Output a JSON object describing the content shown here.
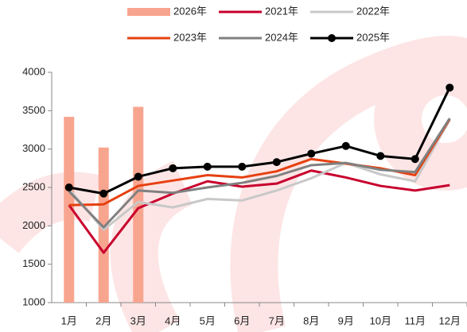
{
  "chart_data": {
    "type": "line",
    "categories": [
      "1月",
      "2月",
      "3月",
      "4月",
      "5月",
      "6月",
      "7月",
      "8月",
      "9月",
      "10月",
      "11月",
      "12月"
    ],
    "series": [
      {
        "name": "2026年",
        "type": "bar",
        "color": "#f8a58f",
        "values": [
          3420,
          3020,
          3550,
          null,
          null,
          null,
          null,
          null,
          null,
          null,
          null,
          null
        ]
      },
      {
        "name": "2021年",
        "type": "line",
        "color": "#c8002d",
        "values": [
          2270,
          1650,
          2230,
          2420,
          2580,
          2510,
          2550,
          2720,
          2630,
          2520,
          2460,
          2530
        ]
      },
      {
        "name": "2022年",
        "type": "line",
        "color": "#c8c8c8",
        "values": [
          2480,
          1950,
          2310,
          2240,
          2350,
          2330,
          2460,
          2620,
          2820,
          2670,
          2580,
          3380
        ]
      },
      {
        "name": "2023年",
        "type": "line",
        "color": "#e64010",
        "values": [
          2270,
          2280,
          2520,
          2590,
          2660,
          2630,
          2710,
          2870,
          2810,
          2750,
          2660,
          3390
        ]
      },
      {
        "name": "2024年",
        "type": "line",
        "color": "#808080",
        "values": [
          2450,
          1980,
          2460,
          2430,
          2500,
          2560,
          2650,
          2790,
          2820,
          2730,
          2700,
          3400
        ]
      },
      {
        "name": "2025年",
        "type": "line",
        "color": "#000000",
        "marker": true,
        "values": [
          2500,
          2420,
          2640,
          2750,
          2770,
          2770,
          2830,
          2940,
          3040,
          2910,
          2870,
          3800
        ]
      }
    ],
    "ylim": [
      1000,
      4000
    ],
    "yticks": [
      1000,
      1500,
      2000,
      2500,
      3000,
      3500,
      4000
    ],
    "grid": false
  }
}
